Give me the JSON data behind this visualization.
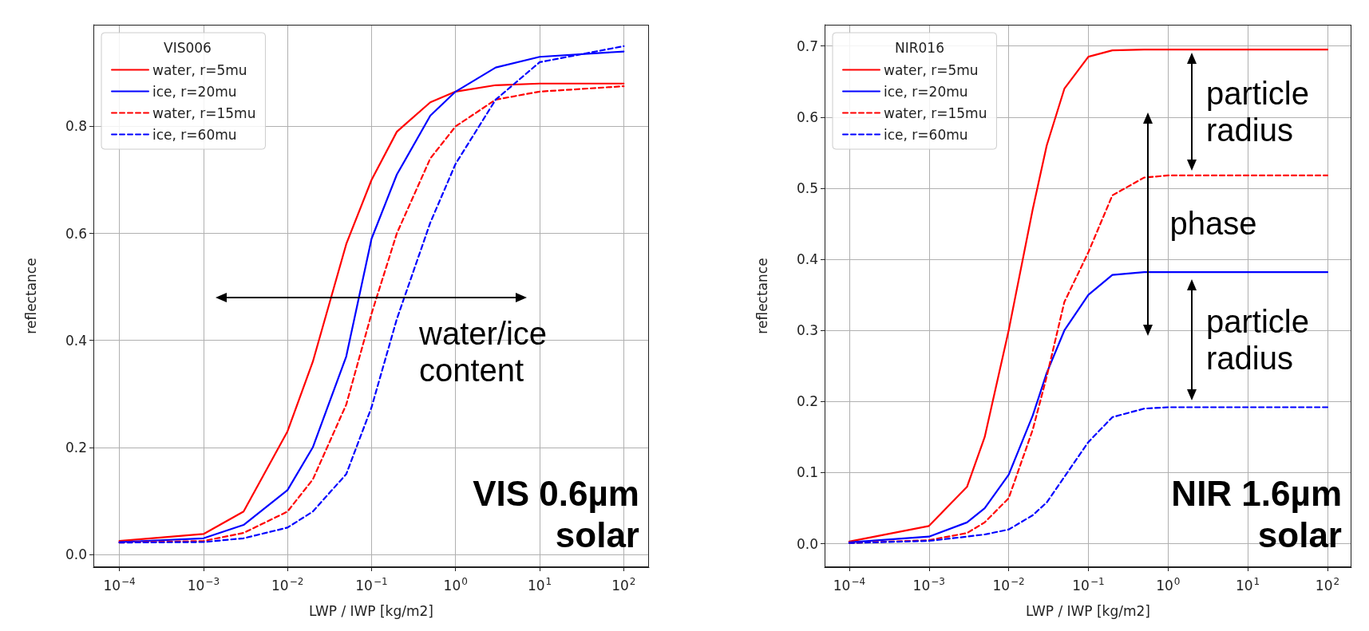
{
  "chart_data": [
    {
      "type": "line",
      "xlabel": "LWP / IWP [kg/m2]",
      "ylabel": "reflectance",
      "legend_title": "VIS006",
      "legend": "top left",
      "grid": true,
      "log": "x",
      "xlim": [
        4.9e-05,
        200
      ],
      "ylim": [
        -0.024,
        0.99
      ],
      "xticks": [
        {
          "value": 0.0001,
          "label": "10$^{−4}$"
        },
        {
          "value": 0.001,
          "label": "10$^{−3}$"
        },
        {
          "value": 0.01,
          "label": "10$^{−2}$"
        },
        {
          "value": 0.1,
          "label": "10$^{−1}$"
        },
        {
          "value": 1,
          "label": "10$^{0}$"
        },
        {
          "value": 10,
          "label": "10$^{1}$"
        },
        {
          "value": 100,
          "label": "10$^{2}$"
        }
      ],
      "yticks": [
        {
          "value": 0,
          "label": "0.0"
        },
        {
          "value": 0.2,
          "label": "0.2"
        },
        {
          "value": 0.4,
          "label": "0.4"
        },
        {
          "value": 0.6,
          "label": "0.6"
        },
        {
          "value": 0.8,
          "label": "0.8"
        }
      ],
      "x": [
        0.0001,
        0.001,
        0.003,
        0.01,
        0.02,
        0.05,
        0.1,
        0.2,
        0.5,
        1,
        3,
        10,
        100
      ],
      "series": [
        {
          "name": "water, r=5mu",
          "color": "#ff0000",
          "line_style": "solid",
          "values": [
            0.025,
            0.038,
            0.08,
            0.23,
            0.36,
            0.58,
            0.7,
            0.79,
            0.845,
            0.865,
            0.877,
            0.88,
            0.88
          ]
        },
        {
          "name": "ice, r=20mu",
          "color": "#0000ff",
          "line_style": "solid",
          "values": [
            0.023,
            0.03,
            0.055,
            0.12,
            0.2,
            0.37,
            0.59,
            0.71,
            0.82,
            0.865,
            0.91,
            0.93,
            0.94
          ]
        },
        {
          "name": "water, r=15mu",
          "color": "#ff0000",
          "line_style": "dashed",
          "values": [
            0.022,
            0.025,
            0.04,
            0.08,
            0.14,
            0.28,
            0.45,
            0.6,
            0.74,
            0.8,
            0.85,
            0.865,
            0.875
          ]
        },
        {
          "name": "ice, r=60mu",
          "color": "#0000ff",
          "line_style": "dashed",
          "values": [
            0.022,
            0.023,
            0.03,
            0.05,
            0.08,
            0.15,
            0.275,
            0.44,
            0.62,
            0.73,
            0.85,
            0.92,
            0.95
          ]
        }
      ],
      "annotations": [
        "water/ice content",
        "VIS 0.6µm solar"
      ]
    },
    {
      "type": "line",
      "xlabel": "LWP / IWP [kg/m2]",
      "ylabel": "reflectance",
      "legend_title": "NIR016",
      "legend": "top left",
      "grid": true,
      "log": "x",
      "xlim": [
        4.9e-05,
        200
      ],
      "ylim": [
        -0.033,
        0.73
      ],
      "xticks": [
        {
          "value": 0.0001,
          "label": "10$^{−4}$"
        },
        {
          "value": 0.001,
          "label": "10$^{−3}$"
        },
        {
          "value": 0.01,
          "label": "10$^{−2}$"
        },
        {
          "value": 0.1,
          "label": "10$^{−1}$"
        },
        {
          "value": 1,
          "label": "10$^{0}$"
        },
        {
          "value": 10,
          "label": "10$^{1}$"
        },
        {
          "value": 100,
          "label": "10$^{2}$"
        }
      ],
      "yticks": [
        {
          "value": 0,
          "label": "0.0"
        },
        {
          "value": 0.1,
          "label": "0.1"
        },
        {
          "value": 0.2,
          "label": "0.2"
        },
        {
          "value": 0.3,
          "label": "0.3"
        },
        {
          "value": 0.4,
          "label": "0.4"
        },
        {
          "value": 0.5,
          "label": "0.5"
        },
        {
          "value": 0.6,
          "label": "0.6"
        },
        {
          "value": 0.7,
          "label": "0.7"
        }
      ],
      "x": [
        0.0001,
        0.001,
        0.003,
        0.005,
        0.01,
        0.02,
        0.03,
        0.05,
        0.1,
        0.2,
        0.5,
        1,
        100
      ],
      "series": [
        {
          "name": "water, r=5mu",
          "color": "#ff0000",
          "line_style": "solid",
          "values": [
            0.003,
            0.025,
            0.08,
            0.15,
            0.3,
            0.47,
            0.56,
            0.64,
            0.685,
            0.694,
            0.695,
            0.695,
            0.695
          ]
        },
        {
          "name": "ice, r=20mu",
          "color": "#0000ff",
          "line_style": "solid",
          "values": [
            0.002,
            0.01,
            0.03,
            0.05,
            0.097,
            0.18,
            0.24,
            0.3,
            0.35,
            0.378,
            0.382,
            0.382,
            0.382
          ]
        },
        {
          "name": "water, r=15mu",
          "color": "#ff0000",
          "line_style": "dashed",
          "values": [
            0.001,
            0.005,
            0.015,
            0.03,
            0.064,
            0.16,
            0.235,
            0.34,
            0.41,
            0.49,
            0.515,
            0.518,
            0.518
          ]
        },
        {
          "name": "ice, r=60mu",
          "color": "#0000ff",
          "line_style": "dashed",
          "values": [
            0.001,
            0.004,
            0.01,
            0.013,
            0.02,
            0.04,
            0.058,
            0.094,
            0.143,
            0.178,
            0.19,
            0.192,
            0.192
          ]
        }
      ],
      "annotations": [
        "particle radius",
        "phase",
        "particle radius",
        "NIR 1.6µm solar"
      ]
    }
  ]
}
